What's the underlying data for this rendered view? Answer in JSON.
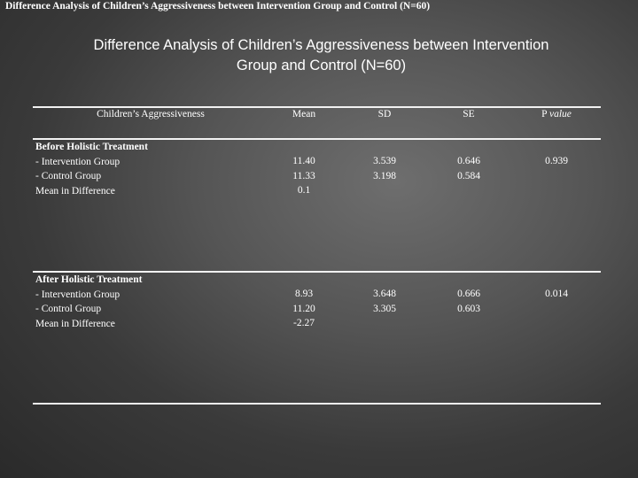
{
  "caption": "Difference Analysis of Children’s Aggressiveness between Intervention Group and Control (N=60)",
  "title": {
    "line1": "Difference Analysis of Children’s Aggressiveness between Intervention",
    "line2": "Group and Control (N=60)"
  },
  "table": {
    "headers": {
      "col1": "Children’s Aggressiveness",
      "mean": "Mean",
      "sd": "SD",
      "se": "SE",
      "p_prefix": "P",
      "p_suffix": "value"
    },
    "groups": [
      {
        "heading": "Before Holistic Treatment",
        "rows": [
          {
            "label": "- Intervention Group",
            "mean": "11.40",
            "sd": "3.539",
            "se": "0.646",
            "p": "0.939"
          },
          {
            "label": "- Control Group",
            "mean": "11.33",
            "sd": "3.198",
            "se": "0.584"
          },
          {
            "label": "Mean in Difference",
            "mean": "0.1"
          }
        ]
      },
      {
        "heading": "After Holistic Treatment",
        "rows": [
          {
            "label": "- Intervention Group",
            "mean": "8.93",
            "sd": "3.648",
            "se": "0.666",
            "p": "0.014"
          },
          {
            "label": "- Control Group",
            "mean": "11.20",
            "sd": "3.305",
            "se": "0.603"
          },
          {
            "label": "Mean in Difference",
            "mean": "-2.27"
          }
        ]
      }
    ]
  }
}
